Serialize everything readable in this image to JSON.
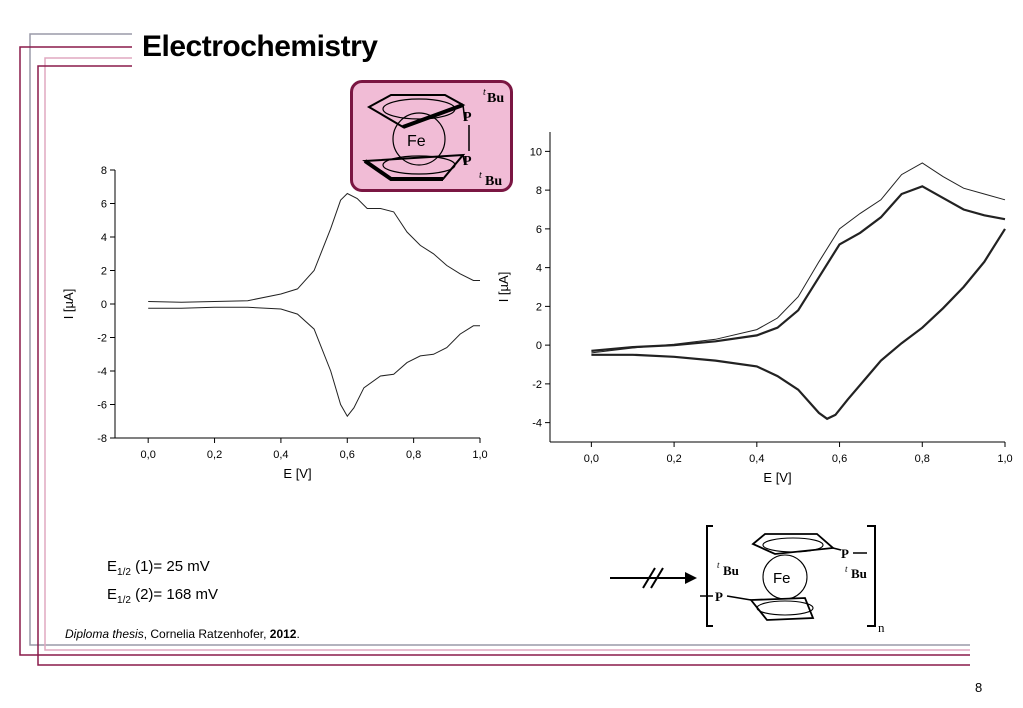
{
  "slide": {
    "title": "Electrochemistry",
    "page_number": "8",
    "colors": {
      "frame_dark": "#8a1a4a",
      "frame_gray": "#9a9aa8",
      "frame_pink": "#e0a8c0",
      "box_fill": "#f1bcd6",
      "box_border": "#7a1642"
    }
  },
  "molecule_top": {
    "fe_label": "Fe",
    "p1": "P",
    "p2": "P",
    "sub1": "t",
    "bu1": "Bu",
    "sub2": "t",
    "bu2": "Bu"
  },
  "polymer": {
    "fe_label": "Fe",
    "p1": "P",
    "p2": "P",
    "t1": "t",
    "bu1": "Bu",
    "t2": "t",
    "bu2": "Bu",
    "subscript": "n",
    "arrow": "blocked-arrow"
  },
  "ehalf": {
    "line1": {
      "prefix": "E",
      "sub": "1/2",
      "suffix": " (1)= 25 mV"
    },
    "line2": {
      "prefix": "E",
      "sub": "1/2",
      "suffix": " (2)= 168 mV"
    }
  },
  "citation": {
    "italic": "Diploma thesis",
    "author": ", Cornelia Ratzenhofer, ",
    "year": "2012",
    "end": "."
  },
  "chart_data": [
    {
      "type": "line",
      "xlabel": "E [V]",
      "ylabel": "I [µA]",
      "xlim": [
        -0.1,
        1.0
      ],
      "ylim": [
        -8,
        8
      ],
      "xticks": [
        "0,0",
        "0,2",
        "0,4",
        "0,6",
        "0,8",
        "1,0"
      ],
      "yticks": [
        "-8",
        "-6",
        "-4",
        "-2",
        "0",
        "2",
        "4",
        "6",
        "8"
      ],
      "series": [
        {
          "x": [
            0.0,
            0.1,
            0.2,
            0.3,
            0.4,
            0.45,
            0.5,
            0.55,
            0.58,
            0.6,
            0.63,
            0.66,
            0.7,
            0.74,
            0.78,
            0.82,
            0.86,
            0.9,
            0.94,
            0.98,
            1.0
          ],
          "y": [
            0.15,
            0.1,
            0.15,
            0.2,
            0.6,
            0.9,
            2.0,
            4.5,
            6.2,
            6.6,
            6.3,
            5.7,
            5.7,
            5.5,
            4.3,
            3.5,
            3.0,
            2.3,
            1.8,
            1.4,
            1.4
          ]
        },
        {
          "x": [
            0.0,
            0.1,
            0.2,
            0.3,
            0.4,
            0.45,
            0.5,
            0.55,
            0.58,
            0.6,
            0.62,
            0.65,
            0.7,
            0.74,
            0.78,
            0.82,
            0.86,
            0.9,
            0.94,
            0.98,
            1.0
          ],
          "y": [
            -0.25,
            -0.25,
            -0.2,
            -0.2,
            -0.3,
            -0.6,
            -1.5,
            -4.0,
            -6.0,
            -6.7,
            -6.2,
            -5.0,
            -4.3,
            -4.2,
            -3.5,
            -3.1,
            -3.0,
            -2.6,
            -1.8,
            -1.3,
            -1.3
          ]
        }
      ]
    },
    {
      "type": "line",
      "xlabel": "E [V]",
      "ylabel": "I [µA]",
      "xlim": [
        -0.1,
        1.0
      ],
      "ylim": [
        -5,
        11
      ],
      "xticks": [
        "0,0",
        "0,2",
        "0,4",
        "0,6",
        "0,8",
        "1,0"
      ],
      "yticks": [
        "-4",
        "-2",
        "0",
        "2",
        "4",
        "6",
        "8",
        "10"
      ],
      "series": [
        {
          "x": [
            0.0,
            0.1,
            0.2,
            0.3,
            0.4,
            0.45,
            0.5,
            0.55,
            0.6,
            0.65,
            0.7,
            0.75,
            0.8,
            0.85,
            0.9,
            0.95,
            1.0
          ],
          "y": [
            -0.3,
            -0.1,
            0.0,
            0.2,
            0.5,
            0.9,
            1.8,
            3.5,
            5.2,
            5.8,
            6.6,
            7.8,
            8.2,
            7.6,
            7.0,
            6.7,
            6.5
          ]
        },
        {
          "x": [
            1.0,
            0.95,
            0.9,
            0.85,
            0.8,
            0.75,
            0.7,
            0.66,
            0.62,
            0.59,
            0.57,
            0.55,
            0.5,
            0.45,
            0.4,
            0.3,
            0.2,
            0.1,
            0.0
          ],
          "y": [
            6.0,
            4.3,
            3.0,
            1.9,
            0.9,
            0.1,
            -0.8,
            -1.8,
            -2.8,
            -3.6,
            -3.8,
            -3.5,
            -2.3,
            -1.6,
            -1.1,
            -0.8,
            -0.6,
            -0.5,
            -0.5
          ]
        },
        {
          "x": [
            0.0,
            0.1,
            0.2,
            0.3,
            0.4,
            0.45,
            0.5,
            0.55,
            0.6,
            0.65,
            0.7,
            0.75,
            0.8,
            0.85,
            0.9,
            0.95,
            1.0
          ],
          "y": [
            -0.4,
            -0.15,
            0.05,
            0.3,
            0.8,
            1.4,
            2.5,
            4.3,
            6.0,
            6.8,
            7.5,
            8.8,
            9.4,
            8.7,
            8.1,
            7.8,
            7.5
          ]
        }
      ]
    }
  ]
}
